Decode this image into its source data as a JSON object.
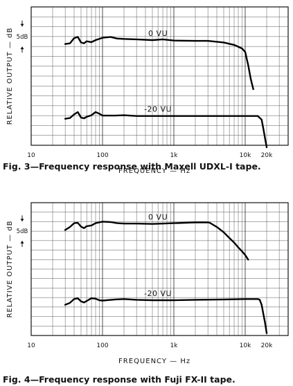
{
  "figures": [
    {
      "caption": "Fig. 3—Frequency response with Maxell UDXL-I tape."
    },
    {
      "caption": "Fig. 4—Frequency response with Fuji FX-II tape."
    }
  ],
  "chart_data": [
    {
      "type": "line",
      "xlabel": "FREQUENCY — Hz",
      "ylabel": "RELATIVE OUTPUT — dB",
      "x_scale": "log",
      "xlim": [
        10,
        40000
      ],
      "ylim": [
        0,
        35
      ],
      "x_tick_labels": [
        {
          "value": 10,
          "label": "10"
        },
        {
          "value": 100,
          "label": "100"
        },
        {
          "value": 1000,
          "label": "1k"
        },
        {
          "value": 10000,
          "label": "10k"
        },
        {
          "value": 20000,
          "label": "20k"
        }
      ],
      "y_scale_marker": "5dB",
      "grid": true,
      "series": [
        {
          "name": "0 VU",
          "points": [
            [
              30,
              25.6
            ],
            [
              35,
              25.8
            ],
            [
              40,
              27.1
            ],
            [
              45,
              27.4
            ],
            [
              50,
              26.0
            ],
            [
              55,
              25.8
            ],
            [
              60,
              26.3
            ],
            [
              70,
              26.1
            ],
            [
              80,
              26.6
            ],
            [
              100,
              27.2
            ],
            [
              130,
              27.4
            ],
            [
              160,
              27.0
            ],
            [
              200,
              26.9
            ],
            [
              300,
              26.8
            ],
            [
              500,
              26.6
            ],
            [
              700,
              26.8
            ],
            [
              1000,
              26.5
            ],
            [
              2000,
              26.4
            ],
            [
              3000,
              26.4
            ],
            [
              5000,
              26.0
            ],
            [
              7000,
              25.4
            ],
            [
              9000,
              24.5
            ],
            [
              10000,
              23.6
            ],
            [
              11000,
              20.3
            ],
            [
              12000,
              16.7
            ],
            [
              13000,
              14.2
            ]
          ]
        },
        {
          "name": "-20 VU",
          "points": [
            [
              30,
              6.7
            ],
            [
              35,
              6.9
            ],
            [
              40,
              7.8
            ],
            [
              45,
              8.4
            ],
            [
              50,
              7.0
            ],
            [
              55,
              6.8
            ],
            [
              60,
              7.2
            ],
            [
              70,
              7.6
            ],
            [
              80,
              8.4
            ],
            [
              90,
              8.0
            ],
            [
              100,
              7.5
            ],
            [
              150,
              7.5
            ],
            [
              200,
              7.6
            ],
            [
              300,
              7.4
            ],
            [
              500,
              7.4
            ],
            [
              1000,
              7.4
            ],
            [
              2000,
              7.4
            ],
            [
              5000,
              7.4
            ],
            [
              10000,
              7.4
            ],
            [
              15000,
              7.4
            ],
            [
              17000,
              6.5
            ],
            [
              18000,
              4.1
            ],
            [
              19000,
              1.7
            ],
            [
              20000,
              -0.5
            ]
          ]
        }
      ]
    },
    {
      "type": "line",
      "xlabel": "FREQUENCY — Hz",
      "ylabel": "RELATIVE OUTPUT — dB",
      "x_scale": "log",
      "xlim": [
        10,
        40000
      ],
      "ylim": [
        0,
        35
      ],
      "x_tick_labels": [
        {
          "value": 10,
          "label": "10"
        },
        {
          "value": 100,
          "label": "100"
        },
        {
          "value": 1000,
          "label": "1k"
        },
        {
          "value": 10000,
          "label": "10k"
        },
        {
          "value": 20000,
          "label": "20k"
        }
      ],
      "y_scale_marker": "5dB",
      "grid": true,
      "series": [
        {
          "name": "0 VU",
          "points": [
            [
              30,
              27.8
            ],
            [
              35,
              28.6
            ],
            [
              40,
              29.6
            ],
            [
              45,
              29.7
            ],
            [
              50,
              28.7
            ],
            [
              55,
              28.3
            ],
            [
              60,
              28.8
            ],
            [
              70,
              29.0
            ],
            [
              80,
              29.6
            ],
            [
              100,
              30.0
            ],
            [
              130,
              29.9
            ],
            [
              160,
              29.6
            ],
            [
              200,
              29.5
            ],
            [
              300,
              29.5
            ],
            [
              500,
              29.4
            ],
            [
              700,
              29.5
            ],
            [
              1000,
              29.6
            ],
            [
              2000,
              29.8
            ],
            [
              3000,
              29.8
            ],
            [
              3200,
              29.7
            ],
            [
              4000,
              28.6
            ],
            [
              5000,
              27.2
            ],
            [
              6000,
              25.7
            ],
            [
              7000,
              24.5
            ],
            [
              8000,
              23.2
            ],
            [
              9000,
              22.2
            ],
            [
              10000,
              21.2
            ],
            [
              11000,
              20.0
            ]
          ]
        },
        {
          "name": "-20 VU",
          "points": [
            [
              30,
              8.1
            ],
            [
              35,
              8.6
            ],
            [
              40,
              9.6
            ],
            [
              45,
              9.8
            ],
            [
              50,
              9.0
            ],
            [
              55,
              8.7
            ],
            [
              60,
              9.1
            ],
            [
              70,
              9.8
            ],
            [
              80,
              9.7
            ],
            [
              90,
              9.3
            ],
            [
              100,
              9.2
            ],
            [
              150,
              9.5
            ],
            [
              200,
              9.6
            ],
            [
              300,
              9.4
            ],
            [
              500,
              9.3
            ],
            [
              1000,
              9.3
            ],
            [
              2000,
              9.4
            ],
            [
              5000,
              9.5
            ],
            [
              10000,
              9.6
            ],
            [
              15000,
              9.6
            ],
            [
              16000,
              9.4
            ],
            [
              17000,
              8.1
            ],
            [
              18000,
              5.6
            ],
            [
              19000,
              3.3
            ],
            [
              20000,
              0.6
            ]
          ]
        }
      ]
    }
  ]
}
